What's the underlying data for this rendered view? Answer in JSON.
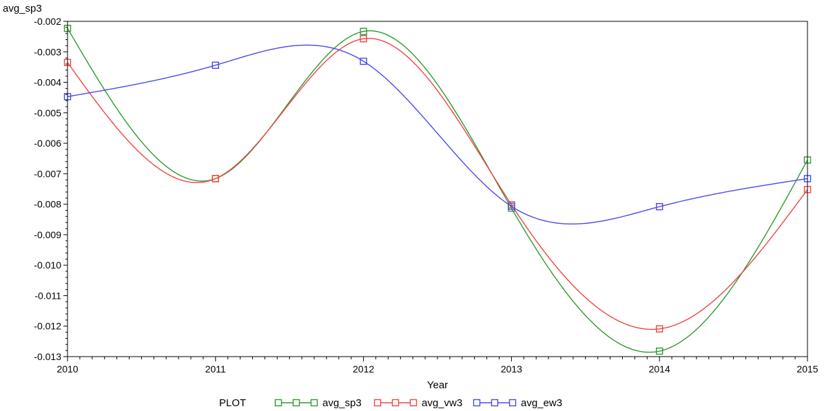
{
  "chart_data": {
    "type": "line",
    "xlabel": "Year",
    "ylabel": "avg_sp3",
    "xlim": [
      2010,
      2015
    ],
    "ylim": [
      -0.013,
      -0.002
    ],
    "x_ticks": [
      2010,
      2011,
      2012,
      2013,
      2014,
      2015
    ],
    "y_ticks": [
      -0.002,
      -0.003,
      -0.004,
      -0.005,
      -0.006,
      -0.007,
      -0.008,
      -0.009,
      -0.01,
      -0.011,
      -0.012,
      -0.013
    ],
    "y_tick_labels": [
      "-0.002",
      "-0.003",
      "-0.004",
      "-0.005",
      "-0.006",
      "-0.007",
      "-0.008",
      "-0.009",
      "-0.010",
      "-0.011",
      "-0.012",
      "-0.013"
    ],
    "grid": false,
    "interpolation": "smooth",
    "marker": "square",
    "legend": {
      "title": "PLOT",
      "placement": "bottom"
    },
    "x": [
      2010,
      2011,
      2012,
      2013,
      2014,
      2015
    ],
    "series": [
      {
        "name": "avg_sp3",
        "color": "#2e9a2e",
        "values": [
          -0.00223,
          -0.00716,
          -0.00233,
          -0.00813,
          -0.01282,
          -0.00655
        ]
      },
      {
        "name": "avg_vw3",
        "color": "#ee4444",
        "values": [
          -0.00335,
          -0.00716,
          -0.00257,
          -0.00802,
          -0.01209,
          -0.00752
        ]
      },
      {
        "name": "avg_ew3",
        "color": "#4848ee",
        "values": [
          -0.00447,
          -0.00344,
          -0.00331,
          -0.00807,
          -0.00808,
          -0.00716
        ]
      }
    ]
  }
}
